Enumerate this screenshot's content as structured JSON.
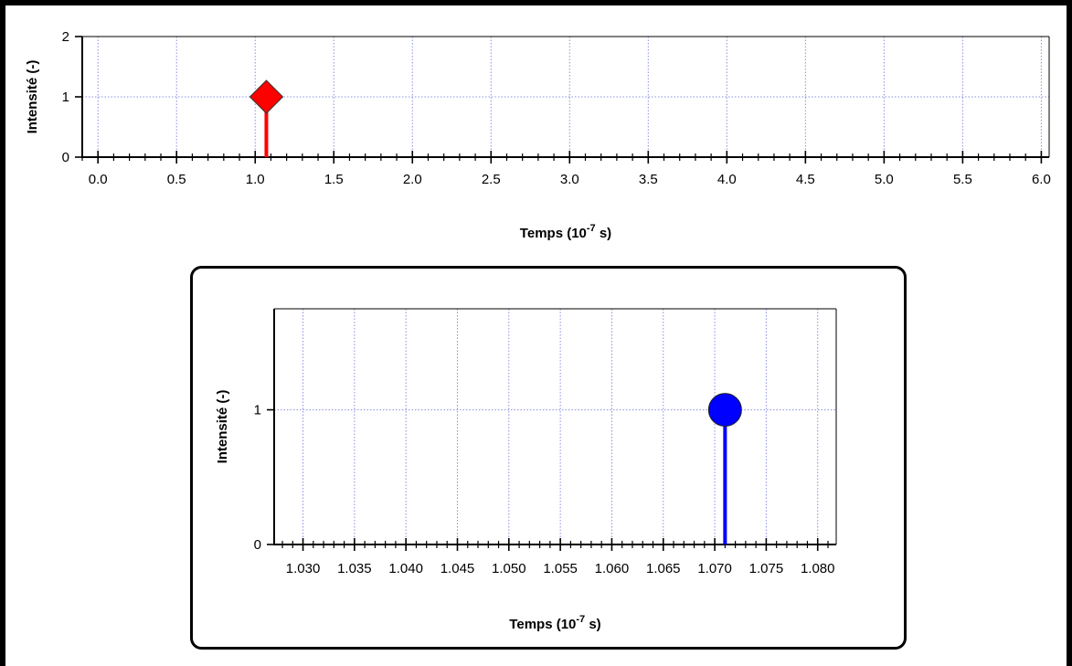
{
  "chart_data": [
    {
      "id": "main",
      "type": "stem",
      "xlabel": "Temps (10",
      "xlabel_exp": "-7",
      "xlabel_suffix": " s)",
      "ylabel": "Intensité (-)",
      "xlim": [
        -0.1,
        6.05
      ],
      "ylim": [
        0,
        2
      ],
      "xticks": [
        0.0,
        0.5,
        1.0,
        1.5,
        2.0,
        2.5,
        3.0,
        3.5,
        4.0,
        4.5,
        5.0,
        5.5,
        6.0
      ],
      "xtick_labels": [
        "0.0",
        "0.5",
        "1.0",
        "1.5",
        "2.0",
        "2.5",
        "3.0",
        "3.5",
        "4.0",
        "4.5",
        "5.0",
        "5.5",
        "6.0"
      ],
      "minor_xtick_step": 0.1,
      "yticks": [
        0,
        1,
        2
      ],
      "ytick_labels": [
        "0",
        "1",
        "2"
      ],
      "grid": true,
      "series": [
        {
          "marker": "diamond",
          "color": "#ff0000",
          "points": [
            {
              "x": 1.071,
              "y": 1
            }
          ]
        }
      ]
    },
    {
      "id": "inset",
      "type": "stem",
      "xlabel": "Temps (10",
      "xlabel_exp": "-7",
      "xlabel_suffix": " s)",
      "ylabel": "Intensité (-)",
      "xlim": [
        1.0272,
        1.0818
      ],
      "ylim": [
        0,
        1.75
      ],
      "xticks": [
        1.03,
        1.035,
        1.04,
        1.045,
        1.05,
        1.055,
        1.06,
        1.065,
        1.07,
        1.075,
        1.08
      ],
      "xtick_labels": [
        "1.030",
        "1.035",
        "1.040",
        "1.045",
        "1.050",
        "1.055",
        "1.060",
        "1.065",
        "1.070",
        "1.075",
        "1.080"
      ],
      "minor_xtick_step": 0.001,
      "yticks": [
        0,
        1
      ],
      "ytick_labels": [
        "0",
        "1"
      ],
      "grid": true,
      "series": [
        {
          "marker": "circle",
          "color": "#0000ff",
          "points": [
            {
              "x": 1.071,
              "y": 1
            }
          ]
        }
      ]
    }
  ]
}
